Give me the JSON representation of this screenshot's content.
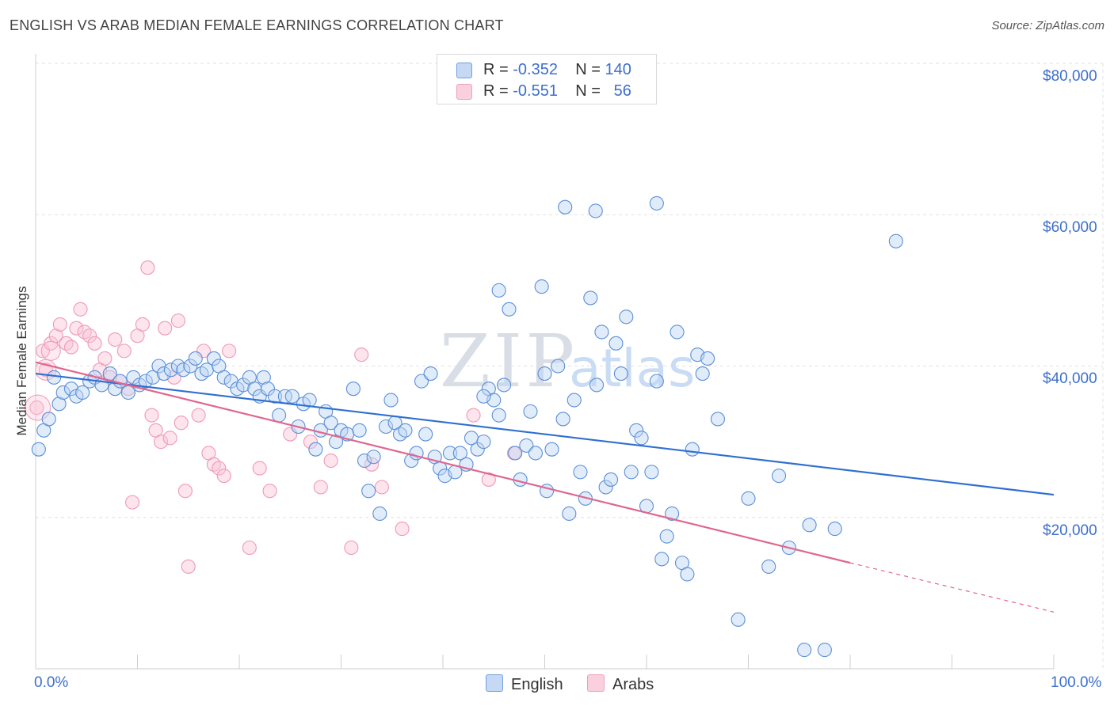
{
  "title": "ENGLISH VS ARAB MEDIAN FEMALE EARNINGS CORRELATION CHART",
  "source": "Source: ZipAtlas.com",
  "watermark": {
    "zip": "ZIP",
    "atlas": "atlas"
  },
  "legend": {
    "english": {
      "r_label": "R = ",
      "r_value": "-0.352",
      "n_label": "N = ",
      "n_value": "140"
    },
    "arabs": {
      "r_label": "R = ",
      "r_value": "-0.551",
      "n_label": "N = ",
      "n_value": "56"
    }
  },
  "colors": {
    "english": "#6f9fe0",
    "english_line": "#2f6fd0",
    "arabs": "#f0a0b8",
    "arabs_line": "#e0668f",
    "axis_text": "#3d6fcc"
  },
  "chart_data": {
    "type": "scatter",
    "title": "ENGLISH VS ARAB MEDIAN FEMALE EARNINGS CORRELATION CHART",
    "xlabel": "",
    "ylabel": "Median Female Earnings",
    "xlim": [
      0,
      100
    ],
    "ylim": [
      0,
      80000
    ],
    "x_tick_labels": [
      "0.0%",
      "100.0%"
    ],
    "y_ticks": [
      20000,
      40000,
      60000,
      80000
    ],
    "y_tick_labels": [
      "$20,000",
      "$40,000",
      "$60,000",
      "$80,000"
    ],
    "grid": true,
    "legend_position": "top-center",
    "series": [
      {
        "name": "English",
        "trend": {
          "x": [
            0,
            100
          ],
          "y": [
            39000,
            23000
          ]
        },
        "points": [
          [
            0.3,
            29000
          ],
          [
            0.8,
            31500
          ],
          [
            1.3,
            33000
          ],
          [
            1.8,
            38500
          ],
          [
            2.3,
            35000
          ],
          [
            2.7,
            36500
          ],
          [
            3.5,
            37000
          ],
          [
            4.0,
            36000
          ],
          [
            4.6,
            36500
          ],
          [
            5.3,
            38000
          ],
          [
            5.8,
            38500
          ],
          [
            6.5,
            37500
          ],
          [
            7.3,
            39000
          ],
          [
            7.8,
            37000
          ],
          [
            8.3,
            38000
          ],
          [
            9.1,
            36500
          ],
          [
            9.6,
            38500
          ],
          [
            10.2,
            37500
          ],
          [
            10.8,
            38000
          ],
          [
            11.5,
            38500
          ],
          [
            12.1,
            40000
          ],
          [
            12.6,
            39000
          ],
          [
            13.3,
            39500
          ],
          [
            14.0,
            40000
          ],
          [
            14.5,
            39500
          ],
          [
            15.2,
            40000
          ],
          [
            15.7,
            41000
          ],
          [
            16.3,
            39000
          ],
          [
            16.8,
            39500
          ],
          [
            17.5,
            41000
          ],
          [
            18.0,
            40000
          ],
          [
            18.5,
            38500
          ],
          [
            19.2,
            38000
          ],
          [
            19.8,
            37000
          ],
          [
            20.4,
            37500
          ],
          [
            21.0,
            38500
          ],
          [
            21.5,
            37000
          ],
          [
            22.0,
            36000
          ],
          [
            22.4,
            38500
          ],
          [
            22.8,
            37000
          ],
          [
            23.5,
            36000
          ],
          [
            23.9,
            33500
          ],
          [
            24.5,
            36000
          ],
          [
            25.2,
            36000
          ],
          [
            25.8,
            32000
          ],
          [
            26.3,
            35000
          ],
          [
            26.9,
            35500
          ],
          [
            27.5,
            29000
          ],
          [
            28.0,
            31500
          ],
          [
            28.5,
            34000
          ],
          [
            29.0,
            32500
          ],
          [
            29.5,
            30000
          ],
          [
            30.0,
            31500
          ],
          [
            30.6,
            31000
          ],
          [
            31.2,
            37000
          ],
          [
            31.8,
            31500
          ],
          [
            32.3,
            27500
          ],
          [
            32.7,
            23500
          ],
          [
            33.2,
            28000
          ],
          [
            33.8,
            20500
          ],
          [
            34.4,
            32000
          ],
          [
            34.9,
            35500
          ],
          [
            35.3,
            32500
          ],
          [
            35.8,
            31000
          ],
          [
            36.3,
            31500
          ],
          [
            36.9,
            27500
          ],
          [
            37.4,
            28500
          ],
          [
            37.9,
            38000
          ],
          [
            38.3,
            31000
          ],
          [
            38.8,
            39000
          ],
          [
            39.2,
            28000
          ],
          [
            39.7,
            26500
          ],
          [
            40.2,
            25500
          ],
          [
            40.7,
            28500
          ],
          [
            41.2,
            26000
          ],
          [
            41.7,
            28500
          ],
          [
            42.3,
            27000
          ],
          [
            42.8,
            30500
          ],
          [
            43.4,
            29000
          ],
          [
            44.0,
            30000
          ],
          [
            44.5,
            37000
          ],
          [
            45.0,
            35500
          ],
          [
            45.5,
            33500
          ],
          [
            46.0,
            37500
          ],
          [
            46.5,
            47500
          ],
          [
            47.1,
            28500
          ],
          [
            47.6,
            25000
          ],
          [
            48.2,
            29500
          ],
          [
            48.6,
            34000
          ],
          [
            49.1,
            28500
          ],
          [
            49.7,
            50500
          ],
          [
            50.2,
            23500
          ],
          [
            50.7,
            29000
          ],
          [
            51.3,
            40000
          ],
          [
            51.8,
            33000
          ],
          [
            52.4,
            20500
          ],
          [
            52.9,
            35500
          ],
          [
            53.5,
            26000
          ],
          [
            54.0,
            22500
          ],
          [
            54.5,
            49000
          ],
          [
            55.1,
            37500
          ],
          [
            55.6,
            44500
          ],
          [
            56.0,
            24000
          ],
          [
            56.5,
            25000
          ],
          [
            57.0,
            43000
          ],
          [
            57.5,
            39000
          ],
          [
            58.0,
            46500
          ],
          [
            58.5,
            26000
          ],
          [
            59.0,
            31500
          ],
          [
            59.5,
            30500
          ],
          [
            60.0,
            21500
          ],
          [
            60.5,
            26000
          ],
          [
            61.0,
            38000
          ],
          [
            61.5,
            14500
          ],
          [
            62.0,
            17500
          ],
          [
            62.5,
            20500
          ],
          [
            63.0,
            44500
          ],
          [
            63.5,
            14000
          ],
          [
            64.0,
            12500
          ],
          [
            64.5,
            29000
          ],
          [
            65.0,
            41500
          ],
          [
            65.5,
            39000
          ],
          [
            67.0,
            33000
          ],
          [
            69.0,
            6500
          ],
          [
            70.0,
            22500
          ],
          [
            72.0,
            13500
          ],
          [
            73.0,
            25500
          ],
          [
            74.0,
            16000
          ],
          [
            75.5,
            2500
          ],
          [
            76.0,
            19000
          ],
          [
            77.5,
            2500
          ],
          [
            78.5,
            18500
          ],
          [
            52.0,
            61000
          ],
          [
            55.0,
            60500
          ],
          [
            61.0,
            61500
          ],
          [
            84.5,
            56500
          ],
          [
            45.5,
            50000
          ],
          [
            50.0,
            39000
          ],
          [
            66.0,
            41000
          ],
          [
            44.0,
            36000
          ]
        ]
      },
      {
        "name": "Arabs",
        "trend": {
          "x": [
            0,
            80
          ],
          "y": [
            40500,
            14000
          ]
        },
        "trend_extension": {
          "x": [
            80,
            100
          ],
          "y": [
            14000,
            7500
          ]
        },
        "points": [
          [
            0.1,
            34500
          ],
          [
            0.7,
            42000
          ],
          [
            1.0,
            39500
          ],
          [
            1.5,
            43000
          ],
          [
            2.0,
            44000
          ],
          [
            2.4,
            45500
          ],
          [
            3.0,
            43000
          ],
          [
            3.5,
            42500
          ],
          [
            4.0,
            45000
          ],
          [
            4.4,
            47500
          ],
          [
            4.8,
            44500
          ],
          [
            5.3,
            44000
          ],
          [
            5.8,
            43000
          ],
          [
            6.3,
            39500
          ],
          [
            6.8,
            41000
          ],
          [
            7.3,
            38500
          ],
          [
            7.8,
            43500
          ],
          [
            8.3,
            38000
          ],
          [
            8.7,
            42000
          ],
          [
            9.1,
            37000
          ],
          [
            9.5,
            22000
          ],
          [
            10.0,
            44000
          ],
          [
            10.5,
            45500
          ],
          [
            11.0,
            53000
          ],
          [
            11.4,
            33500
          ],
          [
            11.8,
            31500
          ],
          [
            12.3,
            30000
          ],
          [
            12.7,
            45000
          ],
          [
            13.2,
            30500
          ],
          [
            13.6,
            38500
          ],
          [
            14.0,
            46000
          ],
          [
            14.3,
            32500
          ],
          [
            14.7,
            23500
          ],
          [
            15.0,
            13500
          ],
          [
            16.0,
            33500
          ],
          [
            16.5,
            42000
          ],
          [
            17.0,
            28500
          ],
          [
            17.5,
            27000
          ],
          [
            18.0,
            26500
          ],
          [
            18.5,
            25500
          ],
          [
            19.0,
            42000
          ],
          [
            21.0,
            16000
          ],
          [
            22.0,
            26500
          ],
          [
            23.0,
            23500
          ],
          [
            25.0,
            31000
          ],
          [
            27.0,
            30000
          ],
          [
            28.0,
            24000
          ],
          [
            29.0,
            27500
          ],
          [
            31.0,
            16000
          ],
          [
            32.0,
            41500
          ],
          [
            33.0,
            27000
          ],
          [
            34.0,
            24000
          ],
          [
            36.0,
            18500
          ],
          [
            43.0,
            33500
          ],
          [
            44.5,
            25000
          ],
          [
            47.0,
            28500
          ]
        ]
      }
    ]
  }
}
